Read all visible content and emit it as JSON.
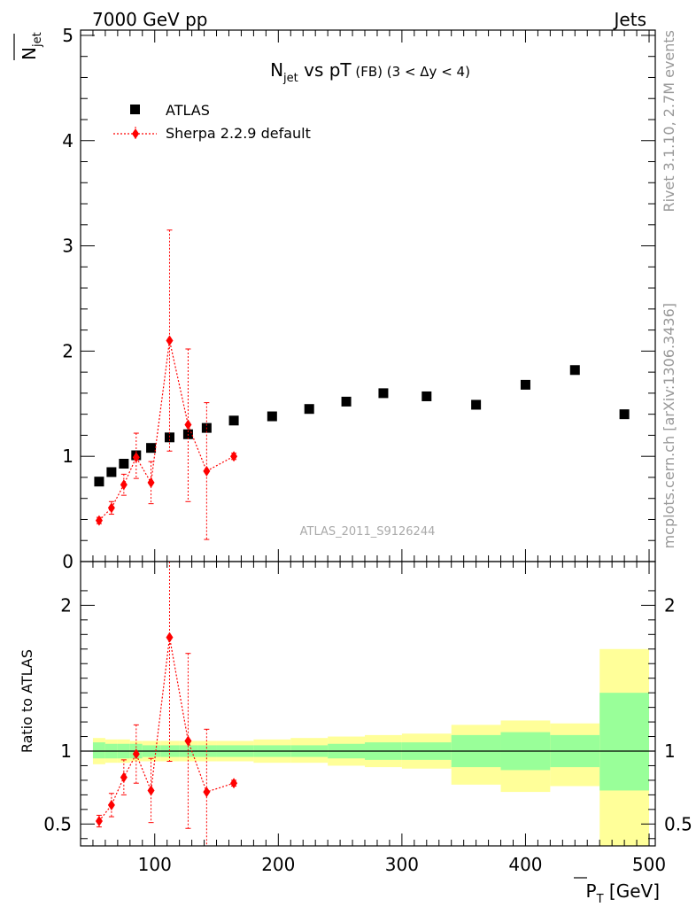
{
  "header": {
    "left": "7000 GeV pp",
    "right": "Jets"
  },
  "side_text": {
    "rivet": "Rivet 3.1.10,  2.7M events",
    "source": "mcplots.cern.ch [arXiv:1306.3436]"
  },
  "watermark": "ATLAS_2011_S9126244",
  "chart_data": [
    {
      "type": "scatter",
      "panel": "main",
      "title_parts": {
        "N": "N",
        "jet_sub": "jet",
        "vs": " vs pT",
        "fb": " (FB)",
        "range": " (3 < Δy < 4)"
      },
      "ylabel_parts": {
        "N": "N",
        "sub": "jet"
      },
      "ylim": [
        0,
        5.05
      ],
      "yticks": [
        0,
        1,
        2,
        3,
        4,
        5
      ],
      "xlim": [
        40,
        505
      ],
      "legend_position": "top-left",
      "series": [
        {
          "name": "ATLAS",
          "marker": "square",
          "color": "#000000",
          "x": [
            55,
            65,
            75,
            85,
            97,
            112,
            127,
            142,
            164,
            195,
            225,
            255,
            285,
            320,
            360,
            400,
            440,
            480
          ],
          "y": [
            0.76,
            0.85,
            0.93,
            1.01,
            1.08,
            1.18,
            1.21,
            1.27,
            1.34,
            1.38,
            1.45,
            1.52,
            1.6,
            1.57,
            1.49,
            1.68,
            1.82,
            1.4
          ]
        },
        {
          "name": "Sherpa 2.2.9 default",
          "marker": "diamond",
          "color": "#ff0000",
          "x": [
            55,
            65,
            75,
            85,
            97,
            112,
            127,
            142,
            164
          ],
          "y": [
            0.39,
            0.51,
            0.73,
            0.99,
            0.75,
            2.1,
            1.3,
            0.86,
            1.0
          ],
          "err_low": [
            0.03,
            0.06,
            0.1,
            0.2,
            0.2,
            1.05,
            0.73,
            0.65,
            0.03
          ],
          "err_high": [
            0.03,
            0.06,
            0.1,
            0.23,
            0.2,
            1.05,
            0.72,
            0.65,
            0.03
          ]
        }
      ]
    },
    {
      "type": "ratio",
      "panel": "ratio",
      "ylabel": "Ratio to ATLAS",
      "xlabel_parts": {
        "P": "P",
        "sub": "T",
        "unit": " [GeV]"
      },
      "ylim": [
        0.35,
        2.3
      ],
      "yticks": [
        0.5,
        1,
        2
      ],
      "xticks": [
        100,
        200,
        300,
        400,
        500
      ],
      "xlim": [
        40,
        505
      ],
      "bands": {
        "inner_color": "#99ff99",
        "outer_color": "#ffff99",
        "edges": [
          50,
          60,
          70,
          80,
          90,
          105,
          120,
          135,
          150,
          180,
          210,
          240,
          270,
          300,
          340,
          380,
          420,
          460,
          500
        ],
        "inner_low": [
          0.95,
          0.95,
          0.95,
          0.95,
          0.96,
          0.96,
          0.96,
          0.96,
          0.96,
          0.96,
          0.96,
          0.95,
          0.94,
          0.94,
          0.89,
          0.87,
          0.89,
          0.73
        ],
        "inner_high": [
          1.06,
          1.05,
          1.05,
          1.05,
          1.04,
          1.04,
          1.04,
          1.04,
          1.04,
          1.04,
          1.04,
          1.05,
          1.06,
          1.06,
          1.11,
          1.13,
          1.11,
          1.4
        ],
        "outer_low": [
          0.91,
          0.92,
          0.92,
          0.93,
          0.93,
          0.93,
          0.93,
          0.93,
          0.93,
          0.92,
          0.92,
          0.9,
          0.89,
          0.88,
          0.77,
          0.72,
          0.76,
          0.35
        ],
        "outer_high": [
          1.09,
          1.08,
          1.08,
          1.07,
          1.07,
          1.07,
          1.07,
          1.07,
          1.07,
          1.08,
          1.09,
          1.1,
          1.11,
          1.12,
          1.18,
          1.21,
          1.19,
          1.7
        ]
      },
      "series": [
        {
          "name": "Sherpa 2.2.9 default",
          "color": "#ff0000",
          "x": [
            55,
            65,
            75,
            85,
            97,
            112,
            127,
            142,
            164
          ],
          "y": [
            0.52,
            0.63,
            0.82,
            0.98,
            0.73,
            1.78,
            1.07,
            0.72,
            0.78
          ],
          "err_low": [
            0.04,
            0.08,
            0.12,
            0.2,
            0.22,
            0.85,
            0.6,
            0.43,
            0.02
          ],
          "err_high": [
            0.04,
            0.08,
            0.12,
            0.2,
            0.22,
            0.85,
            0.6,
            0.43,
            0.02
          ]
        }
      ]
    }
  ]
}
